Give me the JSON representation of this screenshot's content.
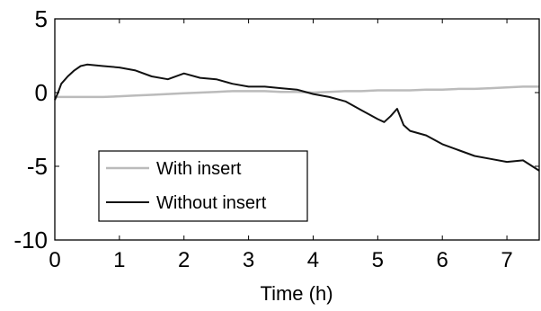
{
  "chart_data": {
    "type": "line",
    "title": "",
    "xlabel": "Time (h)",
    "ylabel": "",
    "xlim": [
      0,
      7.5
    ],
    "ylim": [
      -10,
      5
    ],
    "x_ticks": [
      0,
      1,
      2,
      3,
      4,
      5,
      6,
      7
    ],
    "x_tick_labels": [
      "0",
      "1",
      "2",
      "3",
      "4",
      "5",
      "6",
      "7"
    ],
    "y_ticks": [
      -10,
      -5,
      0,
      5
    ],
    "y_tick_labels": [
      "-10",
      "-5",
      "0",
      "5"
    ],
    "grid": false,
    "legend_position": "bottom-left",
    "series": [
      {
        "name": "With insert",
        "color": "#bbbbbb",
        "x": [
          0,
          0.25,
          0.5,
          0.75,
          1,
          1.25,
          1.5,
          1.75,
          2,
          2.25,
          2.5,
          2.75,
          3,
          3.25,
          3.5,
          3.75,
          4,
          4.25,
          4.5,
          4.75,
          5,
          5.25,
          5.5,
          5.75,
          6,
          6.25,
          6.5,
          6.75,
          7,
          7.25,
          7.5
        ],
        "y": [
          -0.3,
          -0.3,
          -0.3,
          -0.3,
          -0.25,
          -0.2,
          -0.15,
          -0.1,
          -0.05,
          0,
          0.05,
          0.1,
          0.1,
          0.1,
          0.05,
          0.05,
          0,
          0.05,
          0.1,
          0.1,
          0.15,
          0.15,
          0.15,
          0.2,
          0.2,
          0.25,
          0.25,
          0.3,
          0.35,
          0.4,
          0.4
        ]
      },
      {
        "name": "Without insert",
        "color": "#111111",
        "x": [
          0,
          0.05,
          0.1,
          0.2,
          0.3,
          0.4,
          0.5,
          0.75,
          1,
          1.25,
          1.5,
          1.75,
          2,
          2.25,
          2.5,
          2.75,
          3,
          3.25,
          3.5,
          3.75,
          4,
          4.25,
          4.5,
          4.75,
          5,
          5.1,
          5.2,
          5.3,
          5.4,
          5.5,
          5.75,
          6,
          6.25,
          6.5,
          6.75,
          7,
          7.25,
          7.5
        ],
        "y": [
          -0.5,
          0,
          0.6,
          1.1,
          1.5,
          1.8,
          1.9,
          1.8,
          1.7,
          1.5,
          1.1,
          0.9,
          1.3,
          1.0,
          0.9,
          0.6,
          0.4,
          0.4,
          0.3,
          0.2,
          -0.1,
          -0.3,
          -0.6,
          -1.2,
          -1.8,
          -2.0,
          -1.6,
          -1.1,
          -2.2,
          -2.6,
          -2.9,
          -3.5,
          -3.9,
          -4.3,
          -4.5,
          -4.7,
          -4.6,
          -5.3
        ]
      }
    ]
  }
}
